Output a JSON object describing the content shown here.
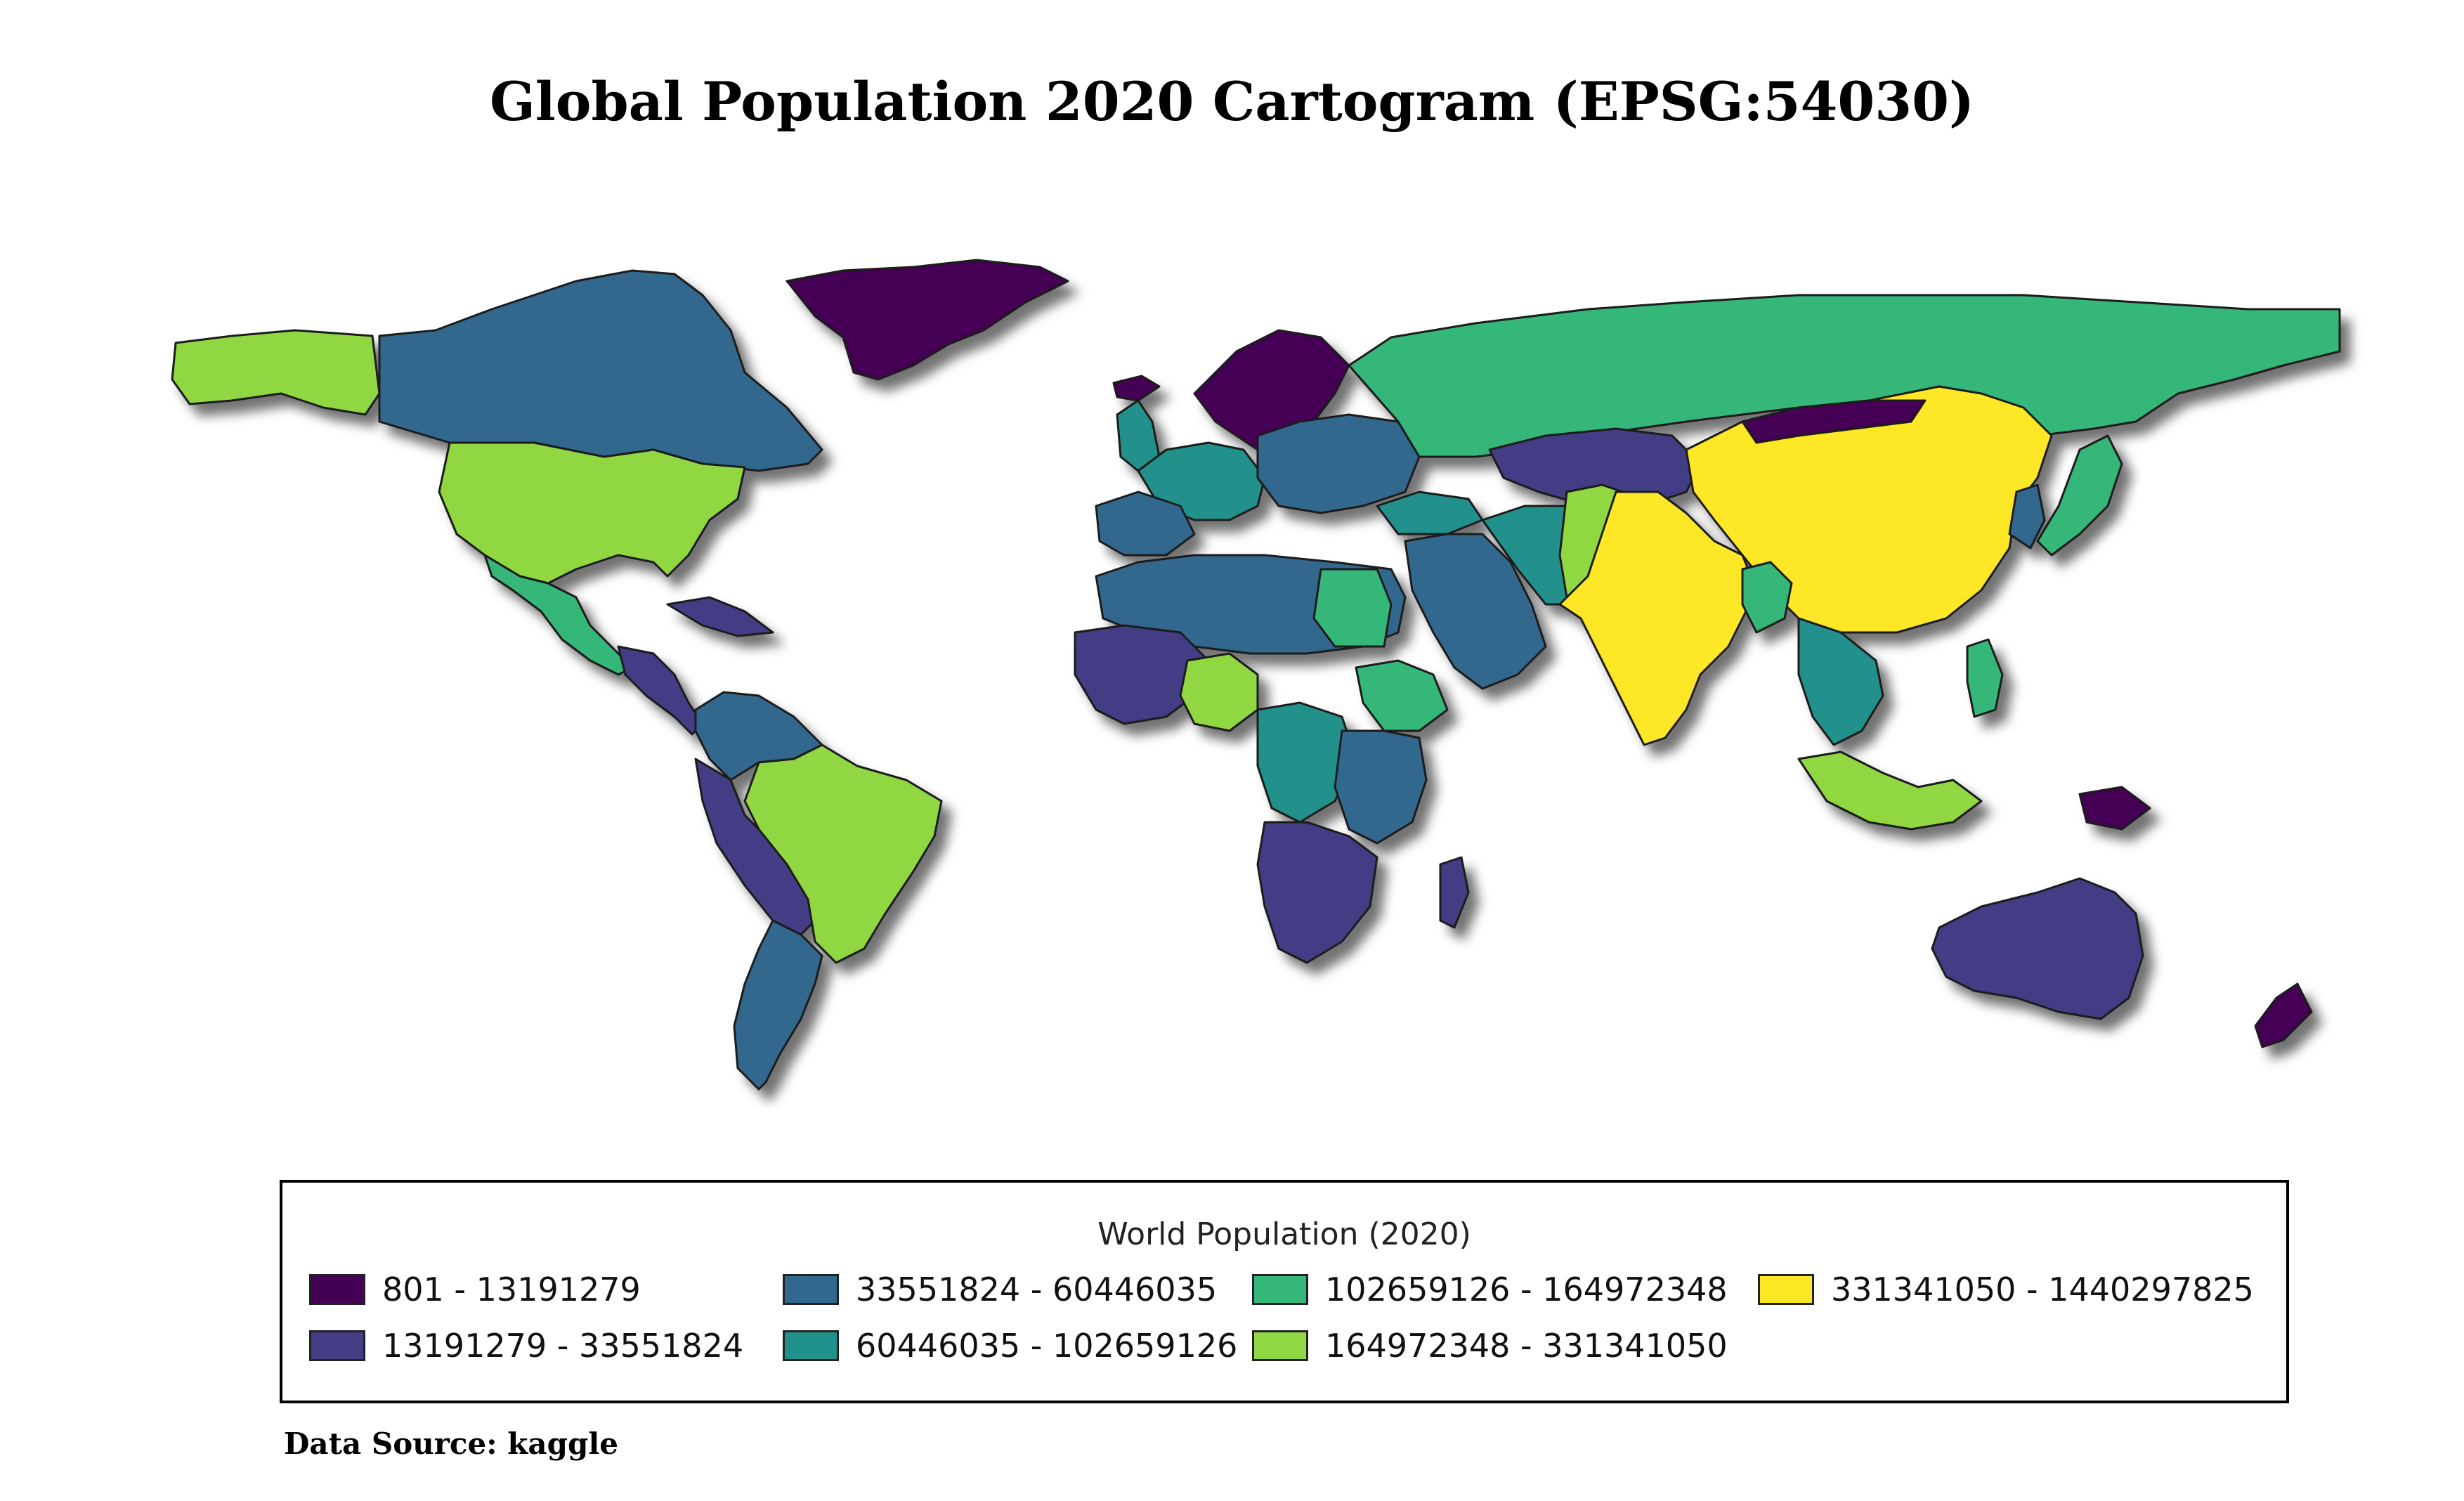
{
  "title": "Global Population 2020 Cartogram (EPSG:54030)",
  "legend": {
    "title": "World Population (2020)",
    "classes": [
      {
        "label": "801 - 13191279",
        "color": "#440154"
      },
      {
        "label": "13191279 - 33551824",
        "color": "#433e85"
      },
      {
        "label": "33551824 - 60446035",
        "color": "#31688e"
      },
      {
        "label": "60446035 - 102659126",
        "color": "#21918c"
      },
      {
        "label": "102659126 - 164972348",
        "color": "#35b779"
      },
      {
        "label": "164972348 - 331341050",
        "color": "#90d743"
      },
      {
        "label": "331341050 - 1440297825",
        "color": "#fde725"
      }
    ]
  },
  "source": "Data Source: kaggle"
}
